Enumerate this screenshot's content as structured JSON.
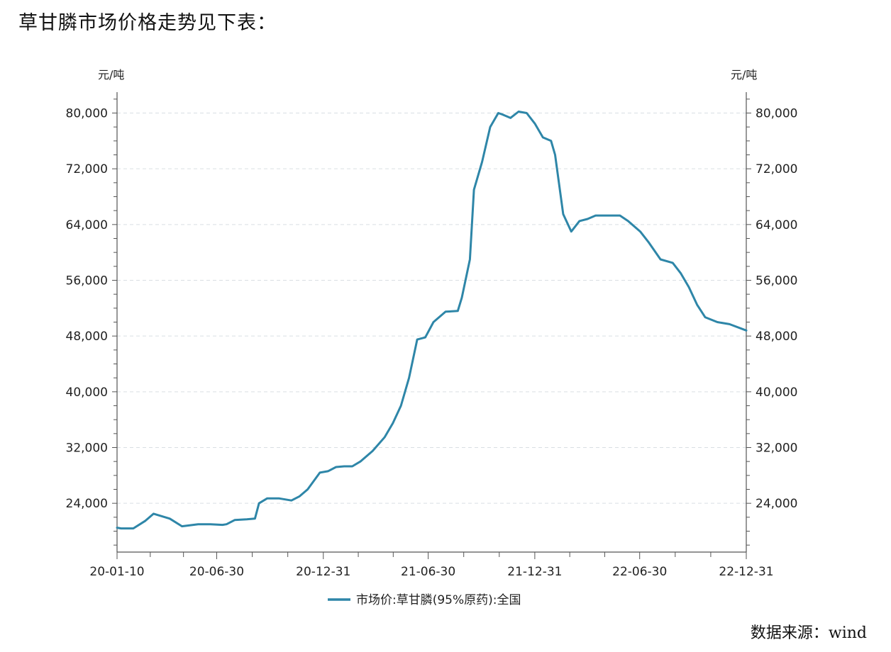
{
  "heading": "草甘膦市场价格走势见下表：",
  "source": "数据来源：wind",
  "chart_data": {
    "type": "line",
    "title": "",
    "xlabel": "",
    "ylabel_left": "元/吨",
    "ylabel_right": "元/吨",
    "xlim": [
      "2020-01-10",
      "2022-12-31"
    ],
    "ylim": [
      17000,
      83000
    ],
    "yticks": [
      24000,
      32000,
      40000,
      48000,
      56000,
      64000,
      72000,
      80000
    ],
    "ytick_labels": [
      "24,000",
      "32,000",
      "40,000",
      "48,000",
      "56,000",
      "64,000",
      "72,000",
      "80,000"
    ],
    "xticks": [
      "2020-01-10",
      "2020-06-30",
      "2020-12-31",
      "2021-06-30",
      "2021-12-31",
      "2022-06-30",
      "2022-12-31"
    ],
    "xtick_labels": [
      "20-01-10",
      "20-06-30",
      "20-12-31",
      "21-06-30",
      "21-12-31",
      "22-06-30",
      "22-12-31"
    ],
    "grid": true,
    "legend_position": "bottom",
    "color": "#2e86a8",
    "series": [
      {
        "name": "市场价:草甘膦(95%原药):全国",
        "points": [
          [
            "2020-01-10",
            20500
          ],
          [
            "2020-01-17",
            20400
          ],
          [
            "2020-02-07",
            20400
          ],
          [
            "2020-02-28",
            21500
          ],
          [
            "2020-03-13",
            22500
          ],
          [
            "2020-04-10",
            21800
          ],
          [
            "2020-05-01",
            20700
          ],
          [
            "2020-05-29",
            21000
          ],
          [
            "2020-06-19",
            21000
          ],
          [
            "2020-07-10",
            20900
          ],
          [
            "2020-07-17",
            21000
          ],
          [
            "2020-07-31",
            21600
          ],
          [
            "2020-08-21",
            21700
          ],
          [
            "2020-09-04",
            21800
          ],
          [
            "2020-09-11",
            24000
          ],
          [
            "2020-09-25",
            24700
          ],
          [
            "2020-10-16",
            24700
          ],
          [
            "2020-11-06",
            24400
          ],
          [
            "2020-11-20",
            25000
          ],
          [
            "2020-12-04",
            26000
          ],
          [
            "2020-12-25",
            28400
          ],
          [
            "2021-01-08",
            28600
          ],
          [
            "2021-01-22",
            29200
          ],
          [
            "2021-02-05",
            29300
          ],
          [
            "2021-02-19",
            29300
          ],
          [
            "2021-03-05",
            30000
          ],
          [
            "2021-03-26",
            31500
          ],
          [
            "2021-04-16",
            33500
          ],
          [
            "2021-04-30",
            35500
          ],
          [
            "2021-05-14",
            38000
          ],
          [
            "2021-05-28",
            42000
          ],
          [
            "2021-06-11",
            47500
          ],
          [
            "2021-06-25",
            47800
          ],
          [
            "2021-07-09",
            50000
          ],
          [
            "2021-07-30",
            51500
          ],
          [
            "2021-08-20",
            51600
          ],
          [
            "2021-08-27",
            53500
          ],
          [
            "2021-09-10",
            59000
          ],
          [
            "2021-09-17",
            69000
          ],
          [
            "2021-10-01",
            73000
          ],
          [
            "2021-10-15",
            78000
          ],
          [
            "2021-10-29",
            80000
          ],
          [
            "2021-11-05",
            79800
          ],
          [
            "2021-11-19",
            79300
          ],
          [
            "2021-12-03",
            80200
          ],
          [
            "2021-12-17",
            80000
          ],
          [
            "2021-12-31",
            78500
          ],
          [
            "2022-01-14",
            76500
          ],
          [
            "2022-01-28",
            76000
          ],
          [
            "2022-02-04",
            74000
          ],
          [
            "2022-02-18",
            65500
          ],
          [
            "2022-03-04",
            63000
          ],
          [
            "2022-03-18",
            64500
          ],
          [
            "2022-04-01",
            64800
          ],
          [
            "2022-04-15",
            65300
          ],
          [
            "2022-05-27",
            65300
          ],
          [
            "2022-06-10",
            64500
          ],
          [
            "2022-07-01",
            63000
          ],
          [
            "2022-07-15",
            61500
          ],
          [
            "2022-08-05",
            59000
          ],
          [
            "2022-08-26",
            58500
          ],
          [
            "2022-09-09",
            57000
          ],
          [
            "2022-09-23",
            55000
          ],
          [
            "2022-10-07",
            52500
          ],
          [
            "2022-10-21",
            50700
          ],
          [
            "2022-11-11",
            50000
          ],
          [
            "2022-12-02",
            49700
          ],
          [
            "2022-12-31",
            48800
          ]
        ]
      }
    ]
  }
}
